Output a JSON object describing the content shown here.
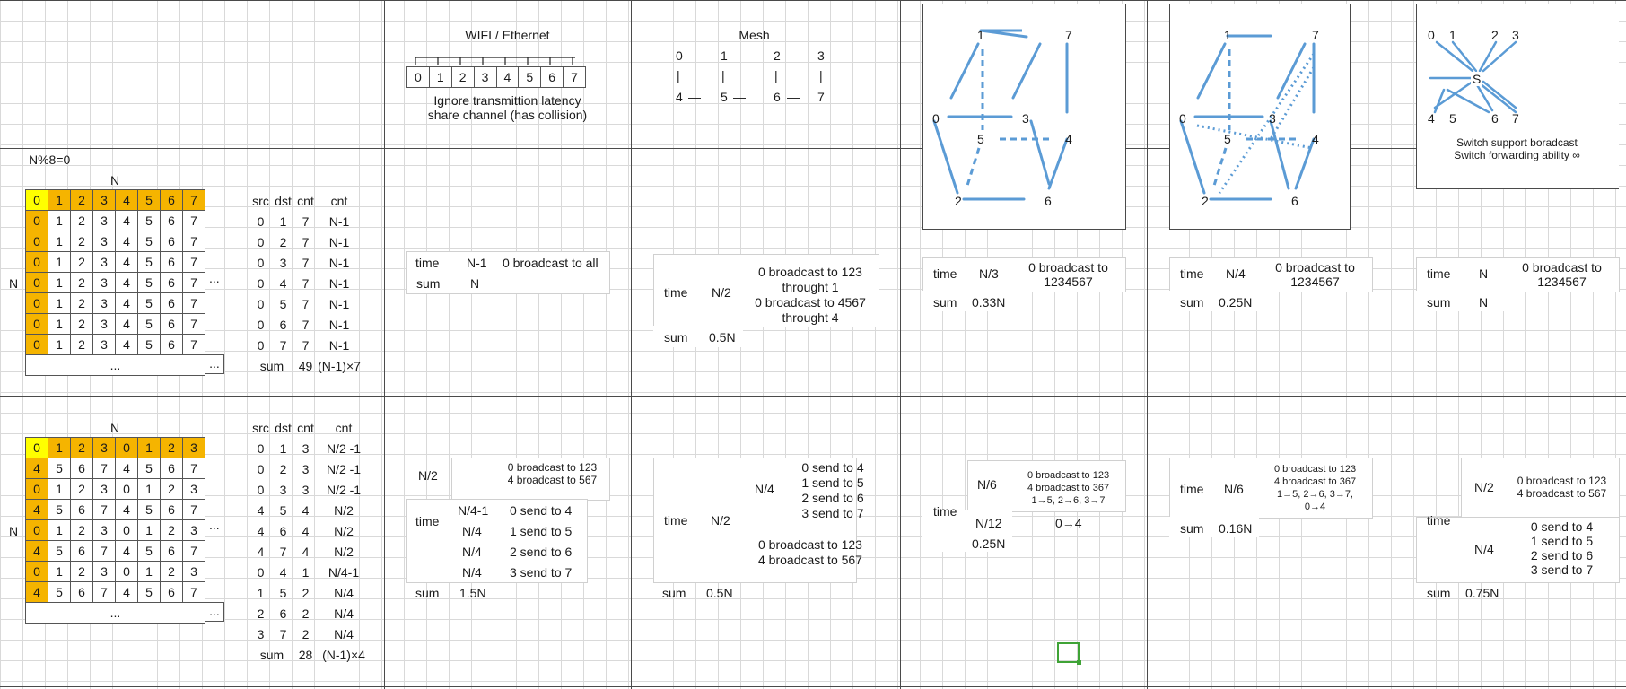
{
  "sections": {
    "wifi_title": "WIFI / Ethernet",
    "wifi_note1": "Ignore transmittion latency",
    "wifi_note2": "share channel (has collision)",
    "mesh_title": "Mesh",
    "switch_note1": "Switch support boradcast",
    "switch_note2": "Switch forwarding ability ∞"
  },
  "bus_nodes": [
    "0",
    "1",
    "2",
    "3",
    "4",
    "5",
    "6",
    "7"
  ],
  "mesh": {
    "row1": [
      "0",
      "1",
      "2",
      "3"
    ],
    "row2": [
      "4",
      "5",
      "6",
      "7"
    ],
    "sep": "—",
    "pipe": "|"
  },
  "cube_labels": [
    "0",
    "1",
    "2",
    "3",
    "4",
    "5",
    "6",
    "7"
  ],
  "switch_labels": {
    "top": [
      "0",
      "1",
      "2",
      "3"
    ],
    "hub": "S",
    "bottom": [
      "4",
      "5",
      "6",
      "7"
    ]
  },
  "matrix1": {
    "cond": "N%8=0",
    "n_top": "N",
    "n_side": "N",
    "header": [
      "0",
      "1",
      "2",
      "3",
      "4",
      "5",
      "6",
      "7"
    ],
    "rows": [
      [
        "0",
        "1",
        "2",
        "3",
        "4",
        "5",
        "6",
        "7"
      ],
      [
        "0",
        "1",
        "2",
        "3",
        "4",
        "5",
        "6",
        "7"
      ],
      [
        "0",
        "1",
        "2",
        "3",
        "4",
        "5",
        "6",
        "7"
      ],
      [
        "0",
        "1",
        "2",
        "3",
        "4",
        "5",
        "6",
        "7"
      ],
      [
        "0",
        "1",
        "2",
        "3",
        "4",
        "5",
        "6",
        "7"
      ],
      [
        "0",
        "1",
        "2",
        "3",
        "4",
        "5",
        "6",
        "7"
      ],
      [
        "0",
        "1",
        "2",
        "3",
        "4",
        "5",
        "6",
        "7"
      ]
    ],
    "ellipsis": "...",
    "ellipsis_side": "..."
  },
  "cnt1": {
    "headers": [
      "src",
      "dst",
      "cnt",
      "cnt"
    ],
    "rows": [
      [
        "0",
        "1",
        "7",
        "N-1"
      ],
      [
        "0",
        "2",
        "7",
        "N-1"
      ],
      [
        "0",
        "3",
        "7",
        "N-1"
      ],
      [
        "0",
        "4",
        "7",
        "N-1"
      ],
      [
        "0",
        "5",
        "7",
        "N-1"
      ],
      [
        "0",
        "6",
        "7",
        "N-1"
      ],
      [
        "0",
        "7",
        "7",
        "N-1"
      ]
    ],
    "sum_label": "sum",
    "sum_val": "49",
    "sum_formula": "(N-1)×7"
  },
  "matrix2": {
    "n_top": "N",
    "n_side": "N",
    "header": [
      "0",
      "1",
      "2",
      "3",
      "0",
      "1",
      "2",
      "3"
    ],
    "rows": [
      [
        "4",
        "5",
        "6",
        "7",
        "4",
        "5",
        "6",
        "7"
      ],
      [
        "0",
        "1",
        "2",
        "3",
        "0",
        "1",
        "2",
        "3"
      ],
      [
        "4",
        "5",
        "6",
        "7",
        "4",
        "5",
        "6",
        "7"
      ],
      [
        "0",
        "1",
        "2",
        "3",
        "0",
        "1",
        "2",
        "3"
      ],
      [
        "4",
        "5",
        "6",
        "7",
        "4",
        "5",
        "6",
        "7"
      ],
      [
        "0",
        "1",
        "2",
        "3",
        "0",
        "1",
        "2",
        "3"
      ],
      [
        "4",
        "5",
        "6",
        "7",
        "4",
        "5",
        "6",
        "7"
      ]
    ],
    "ellipsis": "...",
    "ellipsis_side": "..."
  },
  "cnt2": {
    "headers": [
      "src",
      "dst",
      "cnt",
      "cnt"
    ],
    "rows": [
      [
        "0",
        "1",
        "3",
        "N/2 -1"
      ],
      [
        "0",
        "2",
        "3",
        "N/2 -1"
      ],
      [
        "0",
        "3",
        "3",
        "N/2 -1"
      ],
      [
        "4",
        "5",
        "4",
        "N/2"
      ],
      [
        "4",
        "6",
        "4",
        "N/2"
      ],
      [
        "4",
        "7",
        "4",
        "N/2"
      ],
      [
        "0",
        "4",
        "1",
        "N/4-1"
      ],
      [
        "1",
        "5",
        "2",
        "N/4"
      ],
      [
        "2",
        "6",
        "2",
        "N/4"
      ],
      [
        "3",
        "7",
        "2",
        "N/4"
      ]
    ],
    "sum_label": "sum",
    "sum_val": "28",
    "sum_formula": "(N-1)×4"
  },
  "wifi_r1": {
    "time": "time",
    "time_val": "N-1",
    "desc": "0 broadcast to all",
    "sum": "sum",
    "sum_val": "N"
  },
  "mesh_r1": {
    "time": "time",
    "time_val": "N/2",
    "desc": [
      "0 broadcast to 123",
      "throught 1",
      "0 broadcast to 4567",
      "throught 4"
    ],
    "sum": "sum",
    "sum_val": "0.5N"
  },
  "cube_r1": {
    "time": "time",
    "time_val": "N/3",
    "desc": [
      "0 broadcast to",
      "1234567"
    ],
    "sum": "sum",
    "sum_val": "0.33N"
  },
  "cubeX_r1": {
    "time": "time",
    "time_val": "N/4",
    "desc": [
      "0 broadcast to",
      "1234567"
    ],
    "sum": "sum",
    "sum_val": "0.25N"
  },
  "switch_r1": {
    "time": "time",
    "time_val": "N",
    "desc": [
      "0 broadcast to",
      "1234567"
    ],
    "sum": "sum",
    "sum_val": "N"
  },
  "wifi_r2": {
    "time": "time",
    "rows": [
      {
        "val": "N/2",
        "desc": [
          "0 broadcast to 123",
          "4 broadcast to 567"
        ]
      },
      {
        "val": "N/4-1",
        "desc": [
          "0 send to 4"
        ]
      },
      {
        "val": "N/4",
        "desc": [
          "1 send to 5"
        ]
      },
      {
        "val": "N/4",
        "desc": [
          "2 send to 6"
        ]
      },
      {
        "val": "N/4",
        "desc": [
          "3 send to 7"
        ]
      }
    ],
    "sum": "sum",
    "sum_val": "1.5N"
  },
  "mesh_r2": {
    "time": "time",
    "time_val": "N/2",
    "sub_val": "N/4",
    "sub_desc": [
      "0 send to 4",
      "1 send to 5",
      "2 send to 6",
      "3 send to 7"
    ],
    "desc2": [
      "0 broadcast to 123",
      "4 broadcast to 567"
    ],
    "sum": "sum",
    "sum_val": "0.5N"
  },
  "cube_r2": {
    "time": "time",
    "val1": "N/6",
    "desc1": [
      "0 broadcast to 123",
      "4 broadcast to 367",
      "1→5, 2→6, 3→7"
    ],
    "val2": "N/12",
    "desc2": "0→4",
    "val3": "0.25N"
  },
  "cubeX_r2": {
    "time": "time",
    "val1": "N/6",
    "desc1": [
      "0 broadcast to 123",
      "4 broadcast to 367",
      "1→5, 2→6, 3→7,",
      "0→4"
    ],
    "sum": "sum",
    "sum_val": "0.16N"
  },
  "switch_r2": {
    "time": "time",
    "val1": "N/2",
    "desc1": [
      "0 broadcast to 123",
      "4 broadcast to 567"
    ],
    "val2": "N/4",
    "desc2": [
      "0 send to 4",
      "1 send to 5",
      "2 send to 6",
      "3 send to 7"
    ],
    "sum": "sum",
    "sum_val": "0.75N"
  },
  "colors": {
    "accent": "#5b9bd5",
    "header_orange": "#f5b400",
    "header_yellow": "#ffff00",
    "selection": "#3fa336"
  }
}
